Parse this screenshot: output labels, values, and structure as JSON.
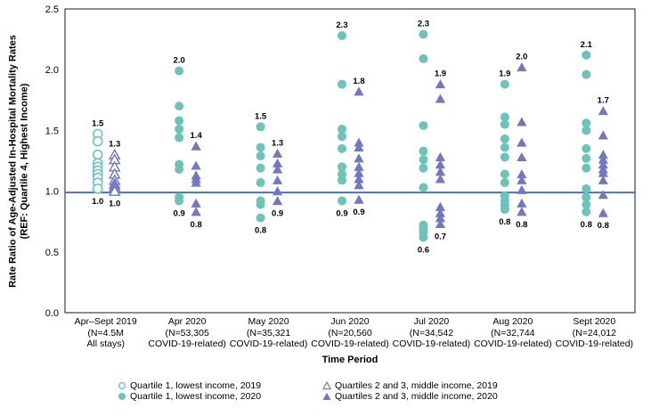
{
  "colors": {
    "teal": "#69c5b7",
    "purple": "#7077c6",
    "reference_line": "#4472c4",
    "axis_frame": "#3f3f3f",
    "text": "#000000"
  },
  "chart_data": {
    "type": "scatter",
    "title": "",
    "xlabel": "Time Period",
    "ylabel": [
      "Rate Ratio of Age-Adjusted In-Hospital Mortality Rates",
      "(REF: Quartile 4, Highest Income)"
    ],
    "ylim": [
      0.0,
      2.5
    ],
    "yticks": [
      "0.0",
      "0.5",
      "1.0",
      "1.5",
      "2.0",
      "2.5"
    ],
    "reference_line": 1.0,
    "grid": false,
    "legend_position": "bottom",
    "groups": [
      {
        "category_lines": [
          "Apr–Sept 2019",
          "(N=4.5M",
          "All stays)"
        ],
        "circles": {
          "open": true,
          "values": [
            1.47,
            1.41,
            1.3,
            1.23,
            1.2,
            1.17,
            1.14,
            1.11,
            1.07,
            1.02
          ],
          "max_label": "1.5",
          "min_label": "1.0"
        },
        "triangles": {
          "open": true,
          "values": [
            1.3,
            1.26,
            1.2,
            1.14,
            1.09,
            1.06,
            1.04,
            1.02,
            1.0
          ],
          "max_label": "1.3",
          "min_label": "1.0"
        }
      },
      {
        "category_lines": [
          "Apr 2020",
          "(N=53,305",
          "COVID-19-related)"
        ],
        "circles": {
          "open": false,
          "values": [
            1.99,
            1.7,
            1.58,
            1.51,
            1.44,
            1.22,
            1.18,
            0.95,
            0.92
          ],
          "max_label": "2.0",
          "min_label": "0.9"
        },
        "triangles": {
          "open": false,
          "values": [
            1.37,
            1.21,
            1.13,
            1.1,
            1.07,
            0.9,
            0.83
          ],
          "max_label": "1.4",
          "min_label": "0.8"
        }
      },
      {
        "category_lines": [
          "May 2020",
          "(N=35,321",
          "COVID-19-related)"
        ],
        "circles": {
          "open": false,
          "values": [
            1.53,
            1.36,
            1.29,
            1.19,
            1.07,
            0.92,
            0.89,
            0.78
          ],
          "max_label": "1.5",
          "min_label": "0.8"
        },
        "triangles": {
          "open": false,
          "values": [
            1.31,
            1.23,
            1.18,
            1.09,
            1.0,
            0.92
          ],
          "max_label": "1.3",
          "min_label": "0.9"
        }
      },
      {
        "category_lines": [
          "Jun 2020",
          "(N=20,560",
          "COVID-19-related)"
        ],
        "circles": {
          "open": false,
          "values": [
            2.28,
            1.88,
            1.51,
            1.45,
            1.35,
            1.2,
            1.14,
            1.09,
            0.92
          ],
          "max_label": "2.3",
          "min_label": "0.9"
        },
        "triangles": {
          "open": false,
          "values": [
            1.82,
            1.4,
            1.36,
            1.27,
            1.2,
            1.15,
            1.1,
            1.05,
            0.93
          ],
          "max_label": "1.8",
          "min_label": "0.9"
        }
      },
      {
        "category_lines": [
          "Jul 2020",
          "(N=34,542",
          "COVID-19-related)"
        ],
        "circles": {
          "open": false,
          "values": [
            2.29,
            2.09,
            1.54,
            1.33,
            1.26,
            1.19,
            1.03,
            0.72,
            0.69,
            0.66,
            0.62
          ],
          "max_label": "2.3",
          "min_label": "0.6"
        },
        "triangles": {
          "open": false,
          "values": [
            1.88,
            1.76,
            1.28,
            1.22,
            1.16,
            1.1,
            0.87,
            0.82,
            0.78,
            0.73
          ],
          "max_label": "1.9",
          "min_label": "0.7"
        }
      },
      {
        "category_lines": [
          "Aug 2020",
          "(N=32,744",
          "COVID-19-related)"
        ],
        "circles": {
          "open": false,
          "values": [
            1.88,
            1.61,
            1.55,
            1.43,
            1.36,
            1.28,
            1.14,
            1.07,
            0.96,
            0.92,
            0.88,
            0.85
          ],
          "max_label": "1.9",
          "min_label": "0.8"
        },
        "triangles": {
          "open": false,
          "values": [
            2.02,
            1.57,
            1.4,
            1.28,
            1.14,
            1.09,
            1.01,
            0.9,
            0.83
          ],
          "max_label": "2.0",
          "min_label": "0.8"
        }
      },
      {
        "category_lines": [
          "Sept 2020",
          "(N=24,012",
          "COVID-19-related)"
        ],
        "circles": {
          "open": false,
          "values": [
            2.12,
            1.96,
            1.56,
            1.5,
            1.35,
            1.27,
            1.19,
            1.02,
            0.95,
            0.89,
            0.83
          ],
          "max_label": "2.1",
          "min_label": "0.8"
        },
        "triangles": {
          "open": false,
          "values": [
            1.66,
            1.46,
            1.3,
            1.26,
            1.22,
            1.18,
            1.15,
            1.09,
            0.97,
            0.82
          ],
          "max_label": "1.7",
          "min_label": "0.8"
        }
      }
    ]
  },
  "legend": {
    "items": [
      {
        "marker": "circle-open",
        "label": "Quartile 1, lowest income, 2019"
      },
      {
        "marker": "circle-filled",
        "label": "Quartile 1, lowest income, 2020"
      },
      {
        "marker": "triangle-open",
        "label": "Quartiles 2 and 3, middle income, 2019"
      },
      {
        "marker": "triangle-filled",
        "label": "Quartiles 2 and 3, middle income, 2020"
      }
    ]
  }
}
